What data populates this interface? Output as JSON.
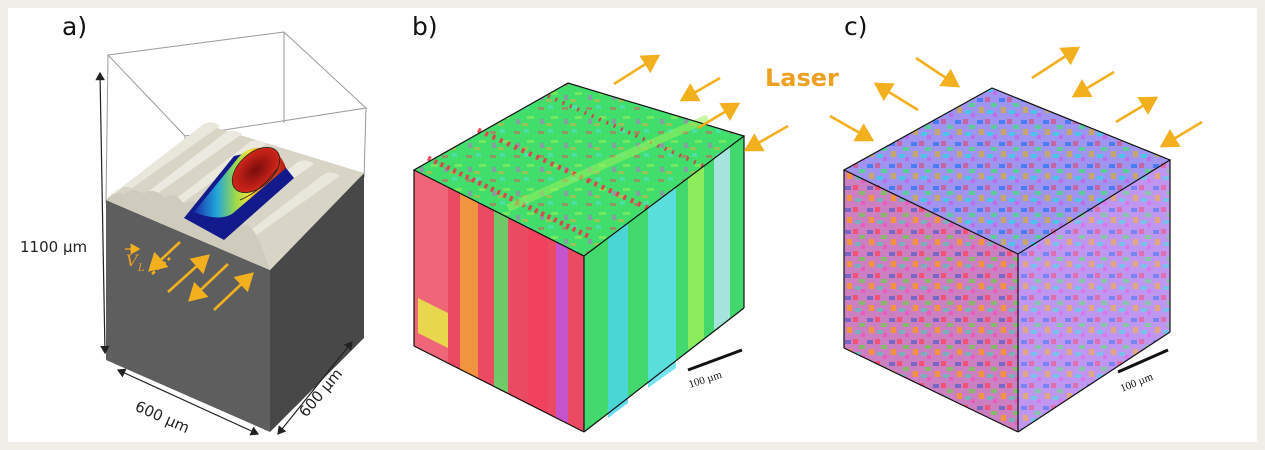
{
  "panels": [
    {
      "label": "a)"
    },
    {
      "label": "b)"
    },
    {
      "label": "c)"
    }
  ],
  "dimensions": {
    "height": "1100 µm",
    "width": "600 µm",
    "depth": "600 µm",
    "velocity": "V",
    "velocity_subscript": "L"
  },
  "laser_label": "Laser",
  "scale_bar": "100 µm",
  "colors": {
    "arrow": "#f2b01e",
    "laser_text": "#f0a020",
    "block_front": "#5e5e5e",
    "block_side": "#4a4a4a",
    "powder": "#dcd8cc"
  }
}
